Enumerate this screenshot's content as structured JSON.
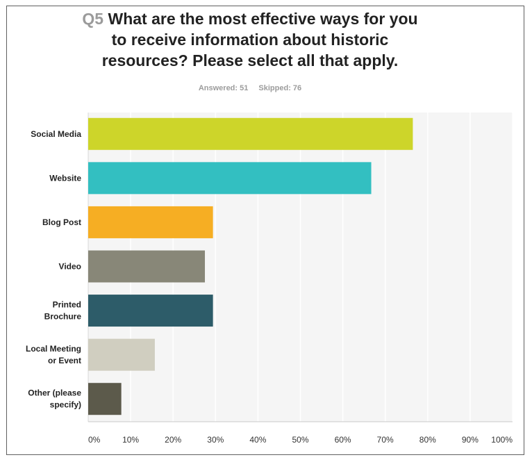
{
  "header": {
    "question_number": "Q5",
    "question_text_line1": "What are the most effective ways for you",
    "question_text_line2": "to receive information about historic",
    "question_text_line3": "resources? Please select all that apply.",
    "answered": "Answered: 51",
    "skipped": "Skipped: 76"
  },
  "chart_data": {
    "type": "bar",
    "orientation": "horizontal",
    "categories": [
      [
        "Social Media"
      ],
      [
        "Website"
      ],
      [
        "Blog Post"
      ],
      [
        "Video"
      ],
      [
        "Printed",
        "Brochure"
      ],
      [
        "Local Meeting",
        "or Event"
      ],
      [
        "Other (please",
        "specify)"
      ]
    ],
    "values": [
      76.5,
      66.7,
      29.4,
      27.5,
      29.4,
      15.7,
      7.8
    ],
    "colors": [
      "#cdd52a",
      "#33bfc1",
      "#f6ae23",
      "#888778",
      "#2d5c69",
      "#d0cec0",
      "#5c5a4b"
    ],
    "xlim": [
      0,
      100
    ],
    "xticks": [
      "0%",
      "10%",
      "20%",
      "30%",
      "40%",
      "50%",
      "60%",
      "70%",
      "80%",
      "90%",
      "100%"
    ],
    "grid": true,
    "plot_background": "#f5f5f5"
  }
}
